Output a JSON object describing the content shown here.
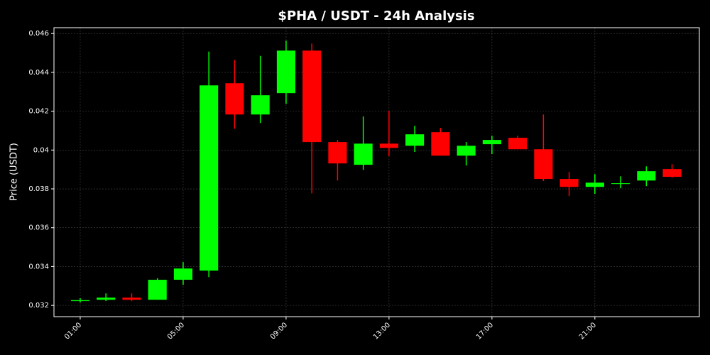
{
  "chart_data": {
    "type": "candlestick",
    "title": "$PHA / USDT - 24h Analysis",
    "y_label": "Price (USDT)",
    "x": [
      1,
      2,
      3,
      4,
      5,
      6,
      7,
      8,
      9,
      10,
      11,
      12,
      13,
      14,
      15,
      16,
      17,
      18,
      19,
      20,
      21,
      22,
      23,
      24
    ],
    "open": [
      0.03222,
      0.03229,
      0.0324,
      0.03229,
      0.03332,
      0.03379,
      0.04344,
      0.04183,
      0.04293,
      0.04512,
      0.04041,
      0.03924,
      0.04033,
      0.04022,
      0.04092,
      0.03971,
      0.0403,
      0.04063,
      0.04004,
      0.03851,
      0.0381,
      0.03825,
      0.03843,
      0.03902
    ],
    "high": [
      0.03237,
      0.03262,
      0.03262,
      0.0334,
      0.03423,
      0.04507,
      0.04464,
      0.04485,
      0.04563,
      0.04548,
      0.04052,
      0.04173,
      0.04202,
      0.04125,
      0.04114,
      0.04041,
      0.04074,
      0.04074,
      0.04183,
      0.03887,
      0.03876,
      0.03865,
      0.03916,
      0.03927
    ],
    "low": [
      0.03215,
      0.03222,
      0.03222,
      0.03229,
      0.03306,
      0.03346,
      0.0411,
      0.04139,
      0.04238,
      0.03777,
      0.03843,
      0.03898,
      0.03968,
      0.0399,
      0.03971,
      0.0392,
      0.03979,
      0.04004,
      0.0384,
      0.03763,
      0.03774,
      0.03803,
      0.03814,
      0.03858
    ],
    "close": [
      0.03227,
      0.0324,
      0.03229,
      0.03332,
      0.0339,
      0.04333,
      0.04183,
      0.04282,
      0.04512,
      0.04041,
      0.03931,
      0.04033,
      0.04011,
      0.04081,
      0.03971,
      0.04022,
      0.04052,
      0.04004,
      0.03851,
      0.0381,
      0.03832,
      0.03829,
      0.03891,
      0.03862
    ],
    "up_color": "#00ff00",
    "down_color": "#ff0000",
    "xlim": [
      -0.02,
      25.06
    ],
    "xticks": [
      {
        "value": 1,
        "label": "01:00"
      },
      {
        "value": 5,
        "label": "05:00"
      },
      {
        "value": 9,
        "label": "09:00"
      },
      {
        "value": 13,
        "label": "13:00"
      },
      {
        "value": 17,
        "label": "17:00"
      },
      {
        "value": 21,
        "label": "21:00"
      }
    ],
    "ylim": [
      0.03142,
      0.0463
    ],
    "yticks": [
      0.032,
      0.034,
      0.036,
      0.038,
      0.04,
      0.042,
      0.044,
      0.046
    ],
    "grid": true
  }
}
